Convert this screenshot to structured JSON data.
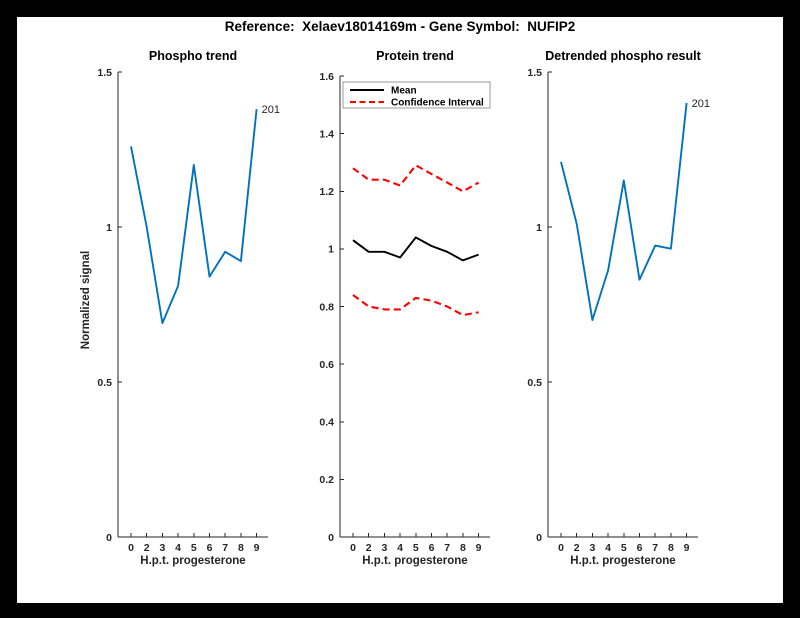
{
  "figure": {
    "title": "Reference:  Xelaev18014169m - Gene Symbol:  NUFIP2",
    "background_color": "#000000",
    "canvas_color": "#ffffff",
    "axis_color": "#262626"
  },
  "chart_data": [
    {
      "type": "line",
      "title": "Phospho trend",
      "xlabel": "H.p.t. progesterone",
      "ylabel": "Normalized signal",
      "x_tick_labels": [
        "0",
        "2",
        "3",
        "4",
        "5",
        "6",
        "7",
        "8",
        "9"
      ],
      "ylim": [
        0,
        1.5
      ],
      "yticks": [
        0,
        0.5,
        1,
        1.5
      ],
      "ytick_labels": [
        "0",
        "0.5",
        "1",
        "1.5"
      ],
      "grid": false,
      "series": [
        {
          "name": "phospho-signal",
          "color": "#0072BD",
          "line_style": "solid",
          "values": [
            1.26,
            1.0,
            0.69,
            0.81,
            1.2,
            0.84,
            0.92,
            0.89,
            1.38
          ]
        }
      ],
      "annotation": {
        "text": "201",
        "attach": "last-point",
        "color": "#262626"
      }
    },
    {
      "type": "line",
      "title": "Protein trend",
      "xlabel": "H.p.t. progesterone",
      "ylabel": "",
      "x_tick_labels": [
        "0",
        "2",
        "3",
        "4",
        "5",
        "6",
        "7",
        "8",
        "9"
      ],
      "ylim": [
        0,
        1.6
      ],
      "yticks": [
        0,
        0.2,
        0.4,
        0.6,
        0.8,
        1,
        1.2,
        1.4,
        1.6
      ],
      "ytick_labels": [
        "0",
        "0.2",
        "0.4",
        "0.6",
        "0.8",
        "1",
        "1.2",
        "1.4",
        "1.6"
      ],
      "grid": false,
      "legend": {
        "position": "top-left",
        "entries": [
          {
            "label": "Mean",
            "color": "#000000",
            "line_style": "solid"
          },
          {
            "label": "Confidence Interval",
            "color": "#ff0000",
            "line_style": "dashed"
          }
        ]
      },
      "series": [
        {
          "name": "mean",
          "color": "#000000",
          "line_style": "solid",
          "values": [
            1.03,
            0.99,
            0.99,
            0.97,
            1.04,
            1.01,
            0.99,
            0.96,
            0.98
          ]
        },
        {
          "name": "confidence-upper",
          "color": "#ff0000",
          "line_style": "dashed",
          "values": [
            1.28,
            1.24,
            1.24,
            1.22,
            1.29,
            1.26,
            1.23,
            1.2,
            1.23
          ]
        },
        {
          "name": "confidence-lower",
          "color": "#ff0000",
          "line_style": "dashed",
          "values": [
            0.84,
            0.8,
            0.79,
            0.79,
            0.83,
            0.82,
            0.8,
            0.77,
            0.78
          ]
        }
      ]
    },
    {
      "type": "line",
      "title": "Detrended phospho result",
      "xlabel": "H.p.t. progesterone",
      "ylabel": "",
      "x_tick_labels": [
        "0",
        "2",
        "3",
        "4",
        "5",
        "6",
        "7",
        "8",
        "9"
      ],
      "ylim": [
        0,
        1.5
      ],
      "yticks": [
        0,
        0.5,
        1,
        1.5
      ],
      "ytick_labels": [
        "0",
        "0.5",
        "1",
        "1.5"
      ],
      "grid": false,
      "series": [
        {
          "name": "detrended-phospho",
          "color": "#0072BD",
          "line_style": "solid",
          "values": [
            1.21,
            1.01,
            0.7,
            0.86,
            1.15,
            0.83,
            0.94,
            0.93,
            1.4
          ]
        }
      ],
      "annotation": {
        "text": "201",
        "attach": "last-point",
        "color": "#262626"
      }
    }
  ]
}
